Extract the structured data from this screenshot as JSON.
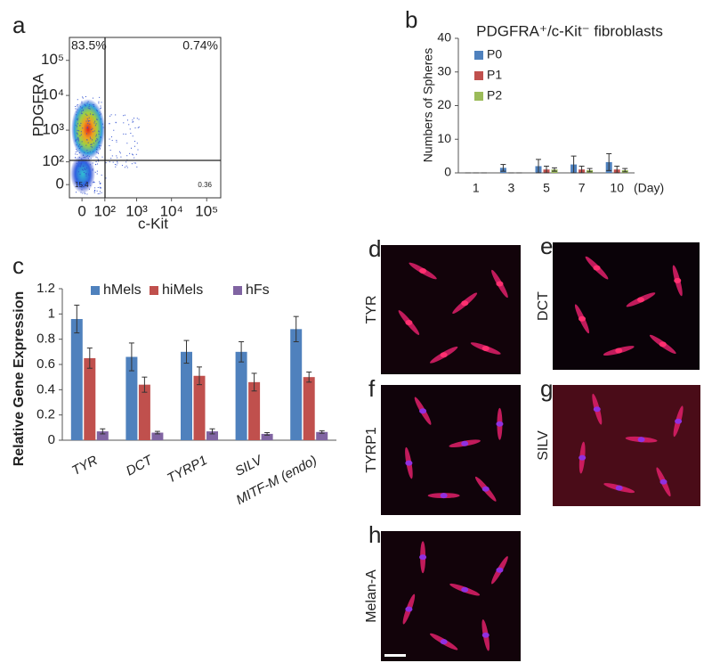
{
  "chart_data": [
    {
      "type": "flow",
      "panel_label": "a",
      "x_label": "c-Kit",
      "y_label": "PDGFRA",
      "xscale": "log",
      "yscale": "log",
      "xlim": [
        -37,
        250000
      ],
      "ylim": [
        -40,
        450000
      ],
      "xticks": [
        0,
        {
          "value": 100,
          "label": "10²"
        },
        {
          "value": 1000,
          "label": "10³"
        },
        {
          "value": 10000,
          "label": "10⁴"
        },
        {
          "value": 100000,
          "label": "10⁵"
        }
      ],
      "yticks": [
        0,
        {
          "value": 100,
          "label": "10²"
        },
        {
          "value": 1000,
          "label": "10³"
        },
        {
          "value": 10000,
          "label": "10⁴"
        },
        {
          "value": 100000,
          "label": "10⁵"
        }
      ],
      "quadrants": {
        "values": [
          83.5,
          0.74,
          15.4,
          0.36
        ],
        "value_labels": [
          "83.5%",
          "0.74%",
          "15.4",
          "0.36"
        ]
      }
    },
    {
      "type": "bar",
      "panel_label": "b",
      "title": "PDGFRA⁺/c-Kit⁻ fibroblasts",
      "y_label": "Numbers of Spheres",
      "x_label": "(Day)",
      "categories": [
        "1",
        "3",
        "5",
        "7",
        "10"
      ],
      "ylim": [
        0,
        40
      ],
      "yticks": [
        0,
        10,
        20,
        30,
        40
      ],
      "legend": "upper-left",
      "series": [
        {
          "name": "P0",
          "color": "#4f81bd",
          "values": [
            0,
            1.5,
            2,
            2.5,
            3.2
          ],
          "errors": [
            0,
            1,
            2,
            2.5,
            2.5
          ]
        },
        {
          "name": "P1",
          "color": "#c0504d",
          "values": [
            0,
            0,
            1,
            1,
            1
          ],
          "errors": [
            0,
            0,
            1,
            1,
            1
          ]
        },
        {
          "name": "P2",
          "color": "#9bbb59",
          "values": [
            0,
            0,
            1,
            0.8,
            0.8
          ],
          "errors": [
            0,
            0,
            0.5,
            0.5,
            0.5
          ]
        }
      ]
    },
    {
      "type": "bar",
      "panel_label": "c",
      "y_label": "Relative Gene Expression",
      "categories": [
        "TYR",
        "DCT",
        "TYRP1",
        "SILV",
        "MITF-M (endo)"
      ],
      "ylim": [
        0,
        1.2
      ],
      "yticks": [
        0,
        0.2,
        0.4,
        0.6,
        0.8,
        1,
        1.2
      ],
      "legend": "top",
      "series": [
        {
          "name": "hMels",
          "color": "#4f81bd",
          "values": [
            0.96,
            0.66,
            0.7,
            0.7,
            0.88
          ],
          "errors": [
            0.11,
            0.11,
            0.09,
            0.08,
            0.1
          ]
        },
        {
          "name": "hiMels",
          "color": "#c0504d",
          "values": [
            0.65,
            0.44,
            0.51,
            0.46,
            0.5
          ],
          "errors": [
            0.08,
            0.06,
            0.07,
            0.07,
            0.04
          ]
        },
        {
          "name": "hFs",
          "color": "#8064a2",
          "values": [
            0.07,
            0.06,
            0.07,
            0.05,
            0.065
          ],
          "errors": [
            0.02,
            0.01,
            0.02,
            0.01,
            0.01
          ]
        }
      ]
    }
  ],
  "images": [
    {
      "panel_label": "d",
      "label": "TYR"
    },
    {
      "panel_label": "e",
      "label": "DCT"
    },
    {
      "panel_label": "f",
      "label": "TYRP1"
    },
    {
      "panel_label": "g",
      "label": "SILV"
    },
    {
      "panel_label": "h",
      "label": "Melan-A"
    }
  ]
}
